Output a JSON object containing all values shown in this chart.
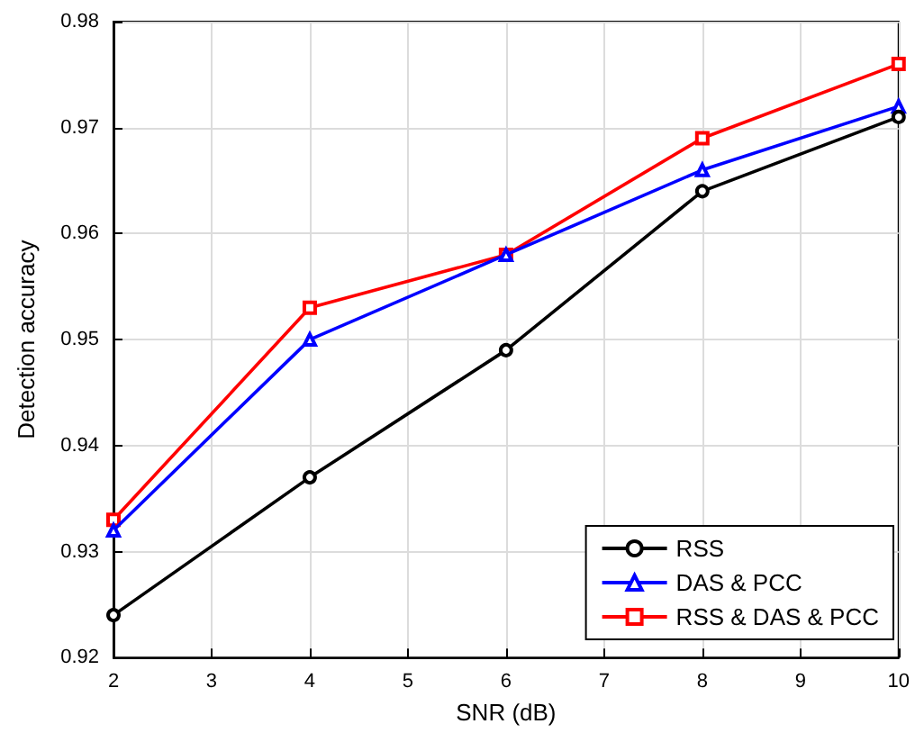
{
  "chart_data": {
    "type": "line",
    "xlabel": "SNR (dB)",
    "ylabel": "Detection accuracy",
    "x": [
      2,
      4,
      6,
      8,
      10
    ],
    "series": [
      {
        "name": "RSS",
        "color": "#000000",
        "marker": "circle",
        "values": [
          0.924,
          0.937,
          0.949,
          0.964,
          0.971
        ]
      },
      {
        "name": "DAS & PCC",
        "color": "#0000ff",
        "marker": "triangle",
        "values": [
          0.932,
          0.95,
          0.958,
          0.966,
          0.972
        ]
      },
      {
        "name": "RSS & DAS & PCC",
        "color": "#ff0000",
        "marker": "square",
        "values": [
          0.933,
          0.953,
          0.958,
          0.969,
          0.976
        ]
      }
    ],
    "xlim": [
      2,
      10
    ],
    "xticks": [
      2,
      3,
      4,
      5,
      6,
      7,
      8,
      9,
      10
    ],
    "ylim": [
      0.92,
      0.98
    ],
    "yticks": [
      0.92,
      0.93,
      0.94,
      0.95,
      0.96,
      0.97,
      0.98
    ],
    "grid": true,
    "legend": "bottom right",
    "line_style": "solid"
  }
}
